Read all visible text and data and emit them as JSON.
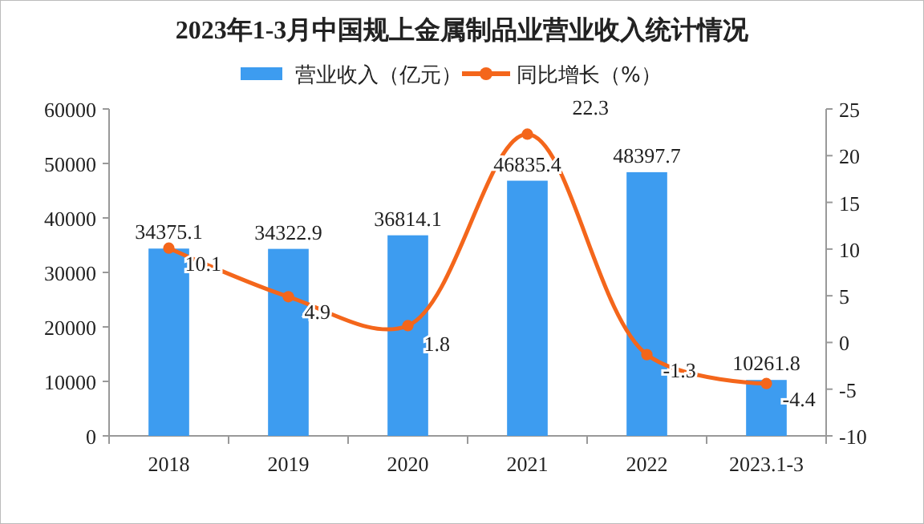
{
  "chart_data": {
    "type": "bar",
    "title": "2023年1-3月中国规上金属制品业营业收入统计情况",
    "categories": [
      "2018",
      "2019",
      "2020",
      "2021",
      "2022",
      "2023.1-3"
    ],
    "series": [
      {
        "name": "营业收入（亿元）",
        "color": "#3d9cf0",
        "values": [
          34375.1,
          34322.9,
          36814.1,
          46835.4,
          48397.7,
          10261.8
        ]
      },
      {
        "name": "同比增长（%）",
        "type": "line",
        "axis": "y2",
        "color": "#f4661b",
        "marker": "circle",
        "values": [
          10.1,
          4.9,
          1.8,
          22.3,
          -1.3,
          -4.4
        ]
      }
    ],
    "ylim": [
      0,
      60000
    ],
    "yticks": [
      0,
      10000,
      20000,
      30000,
      40000,
      50000,
      60000
    ],
    "y2lim": [
      -10,
      25
    ],
    "y2ticks": [
      -10,
      -5,
      0,
      5,
      10,
      15,
      20,
      25
    ],
    "data_labels": true,
    "legend": "top",
    "grid": false
  }
}
